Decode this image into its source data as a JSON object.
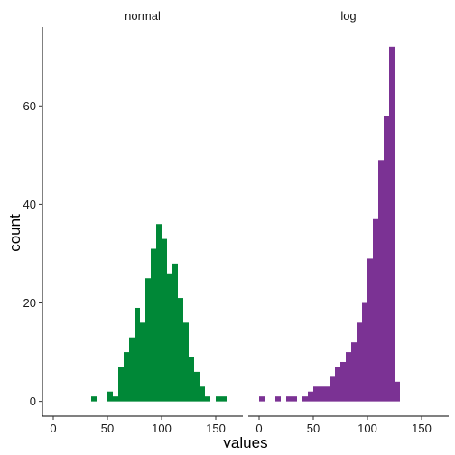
{
  "chart_data": {
    "type": "bar",
    "subtype": "histogram-faceted",
    "xlabel": "values",
    "ylabel": "count",
    "xlim": [
      -10,
      175
    ],
    "ylim": [
      -3,
      76
    ],
    "x_ticks": [
      0,
      50,
      100,
      150
    ],
    "y_ticks": [
      0,
      20,
      40,
      60
    ],
    "bin_width": 5,
    "grid": false,
    "legend": "none",
    "facets": [
      {
        "strip_label": "normal",
        "color": "#008837",
        "bins": [
          {
            "x": 37.5,
            "count": 1
          },
          {
            "x": 52.5,
            "count": 2
          },
          {
            "x": 57.5,
            "count": 1
          },
          {
            "x": 62.5,
            "count": 7
          },
          {
            "x": 67.5,
            "count": 10
          },
          {
            "x": 72.5,
            "count": 13
          },
          {
            "x": 77.5,
            "count": 19
          },
          {
            "x": 82.5,
            "count": 16
          },
          {
            "x": 87.5,
            "count": 25
          },
          {
            "x": 92.5,
            "count": 31
          },
          {
            "x": 97.5,
            "count": 36
          },
          {
            "x": 102.5,
            "count": 33
          },
          {
            "x": 107.5,
            "count": 26
          },
          {
            "x": 112.5,
            "count": 28
          },
          {
            "x": 117.5,
            "count": 21
          },
          {
            "x": 122.5,
            "count": 16
          },
          {
            "x": 127.5,
            "count": 9
          },
          {
            "x": 132.5,
            "count": 6
          },
          {
            "x": 137.5,
            "count": 3
          },
          {
            "x": 142.5,
            "count": 1
          },
          {
            "x": 152.5,
            "count": 1
          },
          {
            "x": 157.5,
            "count": 1
          }
        ]
      },
      {
        "strip_label": "log",
        "color": "#7b3294",
        "bins": [
          {
            "x": 2.5,
            "count": 1
          },
          {
            "x": 17.5,
            "count": 1
          },
          {
            "x": 27.5,
            "count": 1
          },
          {
            "x": 32.5,
            "count": 1
          },
          {
            "x": 42.5,
            "count": 1
          },
          {
            "x": 47.5,
            "count": 2
          },
          {
            "x": 52.5,
            "count": 3
          },
          {
            "x": 57.5,
            "count": 3
          },
          {
            "x": 62.5,
            "count": 3
          },
          {
            "x": 67.5,
            "count": 5
          },
          {
            "x": 72.5,
            "count": 7
          },
          {
            "x": 77.5,
            "count": 8
          },
          {
            "x": 82.5,
            "count": 10
          },
          {
            "x": 87.5,
            "count": 12
          },
          {
            "x": 92.5,
            "count": 16
          },
          {
            "x": 97.5,
            "count": 20
          },
          {
            "x": 102.5,
            "count": 29
          },
          {
            "x": 107.5,
            "count": 37
          },
          {
            "x": 112.5,
            "count": 49
          },
          {
            "x": 117.5,
            "count": 58
          },
          {
            "x": 122.5,
            "count": 72
          },
          {
            "x": 127.5,
            "count": 4
          }
        ]
      }
    ]
  }
}
